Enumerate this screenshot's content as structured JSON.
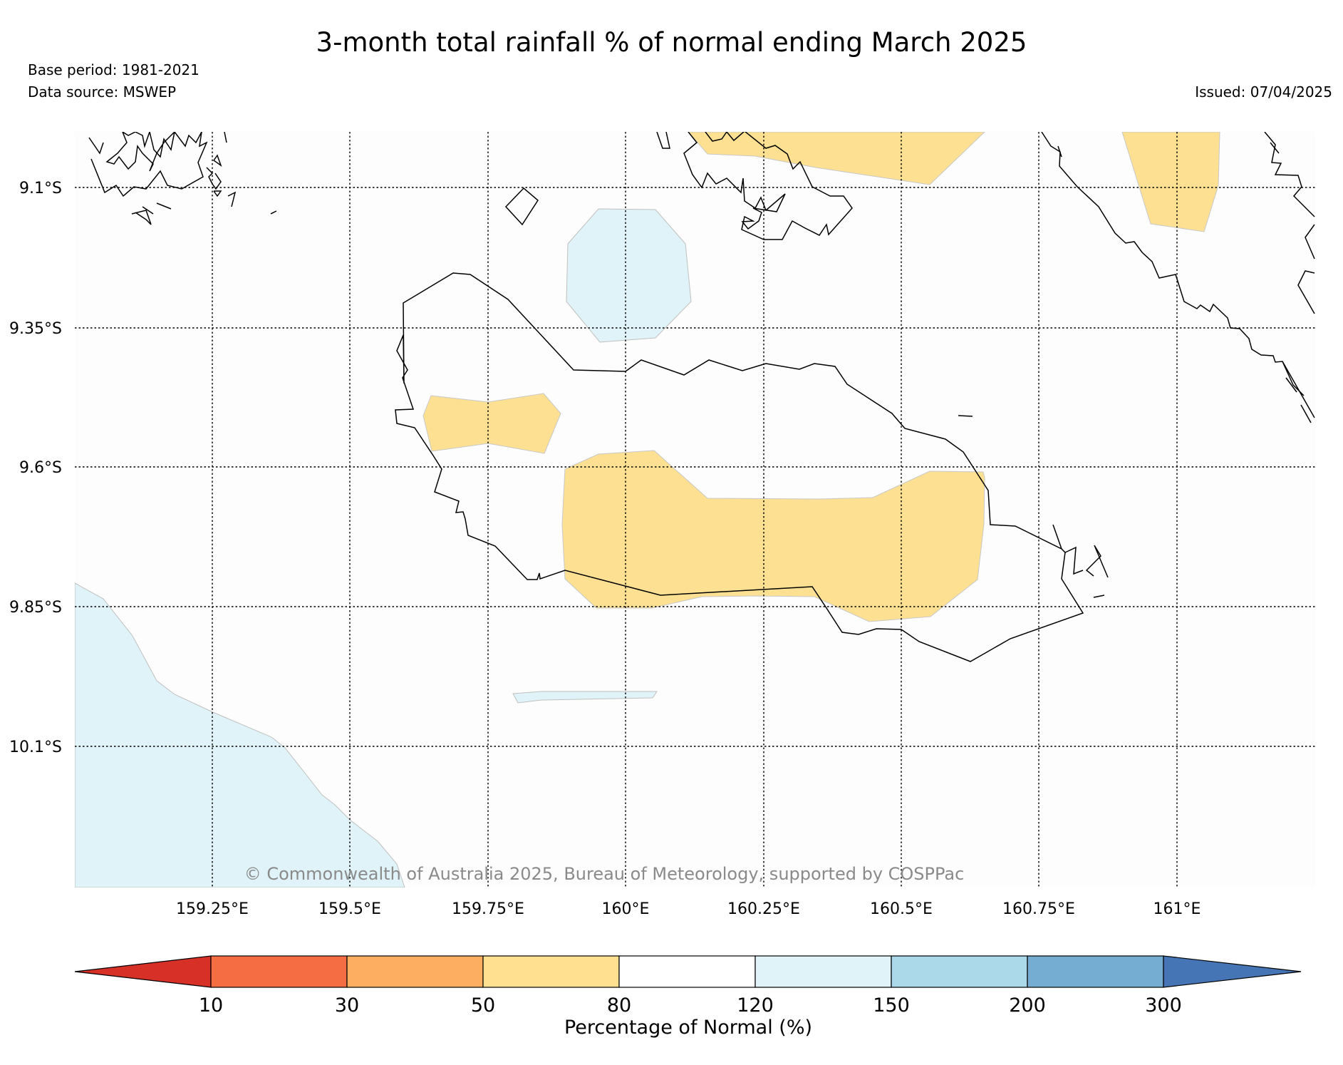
{
  "title": "3-month total rainfall % of normal ending March 2025",
  "base_period": "Base period: 1981-2021",
  "data_source": "Data source: MSWEP",
  "issued": "Issued: 07/04/2025",
  "copyright": "© Commonwealth of Australia 2025, Bureau of Meteorology, supported by COSPPac",
  "map": {
    "lat_labels": [
      "9.1°S",
      "9.35°S",
      "9.6°S",
      "9.85°S",
      "10.1°S"
    ],
    "lon_labels": [
      "159.25°E",
      "159.5°E",
      "159.75°E",
      "160°E",
      "160.25°E",
      "160.5°E",
      "160.75°E",
      "161°E"
    ],
    "background_color": "#fdfdfd",
    "anomaly_areas": [
      {
        "category": "50-80",
        "color": "#fde092"
      },
      {
        "category": "120-150",
        "color": "#e0f3f8"
      }
    ]
  },
  "colorbar": {
    "label": "Percentage of Normal (%)",
    "ticks": [
      "10",
      "30",
      "50",
      "80",
      "120",
      "150",
      "200",
      "300"
    ],
    "colors": [
      "#d73027",
      "#f46d43",
      "#fdae61",
      "#fee090",
      "#ffffff",
      "#e0f3f8",
      "#abd9e9",
      "#74add1",
      "#4575b4"
    ]
  }
}
